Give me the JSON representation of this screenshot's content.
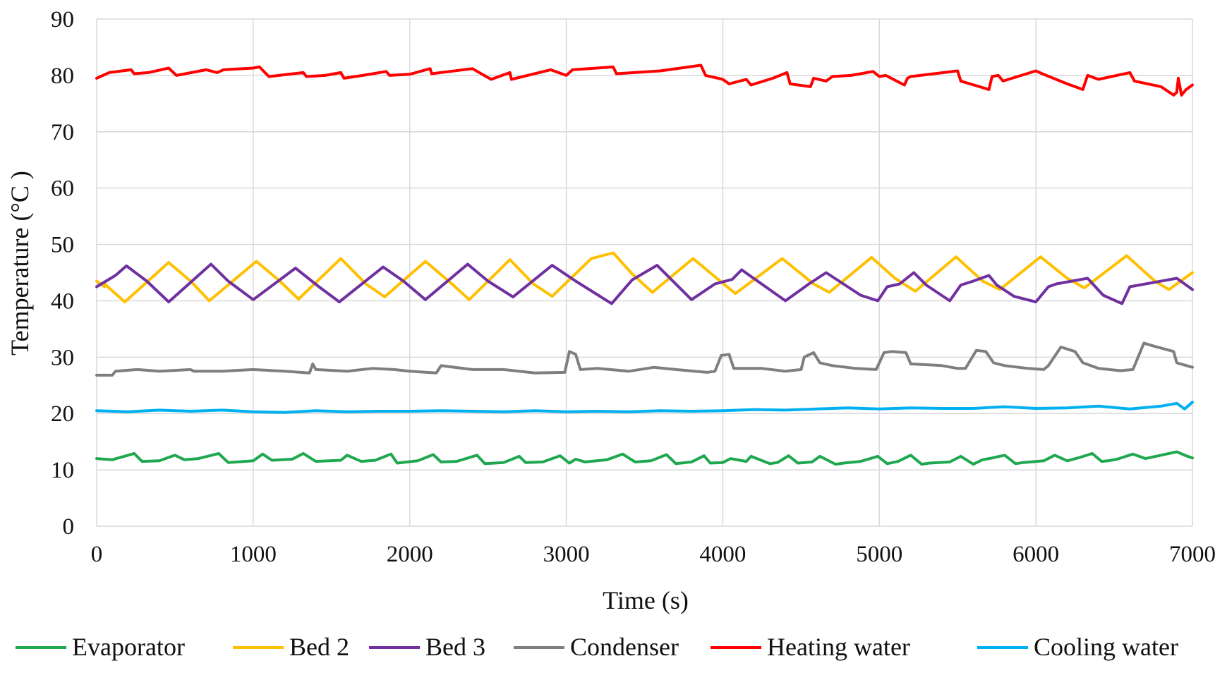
{
  "chart_data": {
    "type": "line",
    "title": "",
    "xlabel": "Time (s)",
    "ylabel": "Temperature (°C )",
    "xlim": [
      0,
      7000
    ],
    "ylim": [
      0,
      90
    ],
    "xticks": [
      0,
      1000,
      2000,
      3000,
      4000,
      5000,
      6000,
      7000
    ],
    "yticks": [
      0,
      10,
      20,
      30,
      40,
      50,
      60,
      70,
      80,
      90
    ],
    "grid": true,
    "legend_position": "bottom",
    "series": [
      {
        "name": "Evaporator",
        "color": "#1fa84f",
        "x": [
          0,
          100,
          240,
          290,
          400,
          500,
          560,
          650,
          780,
          840,
          1000,
          1060,
          1120,
          1250,
          1320,
          1400,
          1560,
          1600,
          1690,
          1780,
          1880,
          1920,
          2050,
          2150,
          2200,
          2300,
          2430,
          2480,
          2600,
          2700,
          2740,
          2850,
          2960,
          3020,
          3060,
          3120,
          3260,
          3360,
          3440,
          3540,
          3640,
          3700,
          3800,
          3880,
          3920,
          4000,
          4050,
          4150,
          4180,
          4300,
          4350,
          4420,
          4480,
          4570,
          4620,
          4720,
          4770,
          4880,
          4990,
          5050,
          5120,
          5200,
          5270,
          5320,
          5450,
          5520,
          5600,
          5660,
          5720,
          5800,
          5870,
          5920,
          6050,
          6120,
          6200,
          6280,
          6360,
          6420,
          6460,
          6520,
          6620,
          6700,
          6800,
          6900,
          6960,
          7000
        ],
        "values": [
          12.0,
          11.8,
          12.9,
          11.5,
          11.6,
          12.6,
          11.8,
          12.0,
          12.9,
          11.3,
          11.6,
          12.8,
          11.7,
          11.9,
          12.9,
          11.5,
          11.7,
          12.6,
          11.5,
          11.7,
          12.8,
          11.2,
          11.6,
          12.7,
          11.4,
          11.5,
          12.6,
          11.1,
          11.3,
          12.4,
          11.3,
          11.4,
          12.5,
          11.2,
          11.9,
          11.4,
          11.8,
          12.8,
          11.4,
          11.6,
          12.7,
          11.1,
          11.4,
          12.5,
          11.2,
          11.3,
          12.0,
          11.5,
          12.4,
          11.1,
          11.3,
          12.5,
          11.2,
          11.4,
          12.4,
          11.0,
          11.2,
          11.5,
          12.4,
          11.1,
          11.5,
          12.6,
          11.0,
          11.2,
          11.4,
          12.4,
          11.0,
          11.8,
          12.1,
          12.6,
          11.1,
          11.3,
          11.6,
          12.6,
          11.6,
          12.2,
          12.9,
          11.5,
          11.6,
          11.9,
          12.8,
          12.0,
          12.6,
          13.2,
          12.5,
          12.1
        ]
      },
      {
        "name": "Bed 2",
        "color": "#ffc000",
        "x": [
          0,
          50,
          50,
          180,
          460,
          600,
          720,
          1020,
          1170,
          1290,
          1560,
          1720,
          1840,
          2100,
          2270,
          2380,
          2640,
          2790,
          2910,
          3160,
          3300,
          3420,
          3550,
          3810,
          3940,
          4080,
          4380,
          4580,
          4680,
          4950,
          5100,
          5230,
          5490,
          5660,
          5770,
          6030,
          6200,
          6310,
          6580,
          6760,
          6850,
          7000
        ],
        "values": [
          43.5,
          42.5,
          43.0,
          39.8,
          46.8,
          43.5,
          40.0,
          47.0,
          43.5,
          40.3,
          47.5,
          43.0,
          40.7,
          47.0,
          43.0,
          40.2,
          47.3,
          43.0,
          40.8,
          47.5,
          48.5,
          44.8,
          41.5,
          47.5,
          44.5,
          41.3,
          47.5,
          43.0,
          41.5,
          47.7,
          44.0,
          41.7,
          47.8,
          43.5,
          42.0,
          47.8,
          44.0,
          42.3,
          48.0,
          43.5,
          42.0,
          45.0
        ]
      },
      {
        "name": "Bed 3",
        "color": "#7030a0",
        "x": [
          0,
          120,
          190,
          320,
          460,
          730,
          840,
          1000,
          1270,
          1420,
          1550,
          1830,
          1960,
          2100,
          2370,
          2500,
          2660,
          2910,
          3060,
          3290,
          3420,
          3580,
          3800,
          3950,
          4060,
          4120,
          4400,
          4550,
          4660,
          4880,
          4990,
          5050,
          5130,
          5220,
          5300,
          5450,
          5520,
          5600,
          5700,
          5750,
          5860,
          6000,
          6080,
          6130,
          6330,
          6430,
          6550,
          6600,
          6900,
          7000
        ],
        "values": [
          42.5,
          44.5,
          46.2,
          43.5,
          39.8,
          46.5,
          43.5,
          40.2,
          45.8,
          42.5,
          39.8,
          46.0,
          43.5,
          40.2,
          46.5,
          43.5,
          40.7,
          46.3,
          43.5,
          39.5,
          43.7,
          46.3,
          40.2,
          43.0,
          43.8,
          45.5,
          40.0,
          43.0,
          45.0,
          41.0,
          40.0,
          42.5,
          43.0,
          45.0,
          42.8,
          40.0,
          42.8,
          43.5,
          44.5,
          42.8,
          40.8,
          39.8,
          42.5,
          43.0,
          44.0,
          41.0,
          39.5,
          42.5,
          44.0,
          42.0
        ]
      },
      {
        "name": "Condenser",
        "color": "#7f7f7f",
        "x": [
          0,
          100,
          120,
          260,
          400,
          600,
          620,
          800,
          1000,
          1200,
          1360,
          1380,
          1400,
          1600,
          1760,
          1900,
          2000,
          2170,
          2200,
          2400,
          2600,
          2800,
          2990,
          3020,
          3060,
          3090,
          3200,
          3400,
          3560,
          3700,
          3900,
          3950,
          3990,
          4040,
          4070,
          4250,
          4400,
          4500,
          4520,
          4580,
          4620,
          4700,
          4850,
          4980,
          5030,
          5080,
          5170,
          5200,
          5400,
          5500,
          5550,
          5620,
          5680,
          5730,
          5800,
          5950,
          6050,
          6080,
          6160,
          6250,
          6300,
          6400,
          6540,
          6620,
          6690,
          6750,
          6880,
          6900,
          7000
        ],
        "values": [
          26.8,
          26.8,
          27.5,
          27.8,
          27.5,
          27.8,
          27.5,
          27.5,
          27.8,
          27.5,
          27.2,
          28.8,
          27.8,
          27.5,
          28.0,
          27.8,
          27.5,
          27.2,
          28.5,
          27.8,
          27.8,
          27.2,
          27.3,
          31.0,
          30.5,
          27.8,
          28.0,
          27.5,
          28.2,
          27.8,
          27.3,
          27.5,
          30.3,
          30.5,
          28.0,
          28.0,
          27.5,
          27.8,
          30.0,
          30.8,
          29.0,
          28.5,
          28.0,
          27.8,
          30.8,
          31.0,
          30.8,
          28.8,
          28.5,
          28.0,
          28.0,
          31.2,
          31.0,
          29.0,
          28.5,
          28.0,
          27.8,
          28.5,
          31.8,
          31.0,
          29.0,
          28.0,
          27.6,
          27.8,
          32.5,
          32.0,
          31.0,
          29.0,
          28.2
        ]
      },
      {
        "name": "Heating water",
        "color": "#ff0000",
        "x": [
          0,
          80,
          220,
          240,
          330,
          460,
          510,
          700,
          770,
          810,
          1000,
          1040,
          1100,
          1320,
          1340,
          1460,
          1560,
          1580,
          1700,
          1850,
          1870,
          2000,
          2130,
          2140,
          2400,
          2520,
          2640,
          2650,
          2900,
          3000,
          3040,
          3300,
          3320,
          3600,
          3860,
          3890,
          4000,
          4040,
          4150,
          4180,
          4320,
          4410,
          4430,
          4560,
          4580,
          4660,
          4700,
          4820,
          4960,
          5000,
          5040,
          5160,
          5180,
          5200,
          5500,
          5520,
          5700,
          5720,
          5760,
          5790,
          6000,
          6040,
          6200,
          6300,
          6330,
          6400,
          6600,
          6630,
          6800,
          6880,
          6900,
          6910,
          6930,
          6960,
          7000
        ],
        "values": [
          79.5,
          80.5,
          81.0,
          80.3,
          80.5,
          81.3,
          80.0,
          81.0,
          80.5,
          81.0,
          81.3,
          81.5,
          79.8,
          80.5,
          79.8,
          80.0,
          80.5,
          79.5,
          80.0,
          80.7,
          80.0,
          80.2,
          81.2,
          80.3,
          81.2,
          79.3,
          80.5,
          79.3,
          81.0,
          80.0,
          81.0,
          81.5,
          80.3,
          80.8,
          81.8,
          80.0,
          79.3,
          78.5,
          79.3,
          78.3,
          79.5,
          80.5,
          78.5,
          78.0,
          79.5,
          79.0,
          79.8,
          80.0,
          80.7,
          79.8,
          80.0,
          78.3,
          79.5,
          79.8,
          80.8,
          79.0,
          77.5,
          79.8,
          80.0,
          79.0,
          80.8,
          80.3,
          78.5,
          77.5,
          80.0,
          79.3,
          80.5,
          79.0,
          78.0,
          76.5,
          77.0,
          79.5,
          76.5,
          77.5,
          78.3
        ]
      },
      {
        "name": "Cooling water",
        "color": "#00b0f0",
        "x": [
          0,
          200,
          400,
          600,
          800,
          1000,
          1200,
          1400,
          1600,
          1800,
          2000,
          2200,
          2400,
          2600,
          2800,
          3000,
          3200,
          3400,
          3600,
          3800,
          4000,
          4200,
          4400,
          4600,
          4800,
          5000,
          5200,
          5400,
          5600,
          5800,
          6000,
          6200,
          6400,
          6600,
          6800,
          6900,
          6950,
          7000
        ],
        "values": [
          20.5,
          20.3,
          20.6,
          20.4,
          20.6,
          20.3,
          20.2,
          20.5,
          20.3,
          20.4,
          20.4,
          20.5,
          20.4,
          20.3,
          20.5,
          20.3,
          20.4,
          20.3,
          20.5,
          20.4,
          20.5,
          20.7,
          20.6,
          20.8,
          21.0,
          20.8,
          21.0,
          20.9,
          20.9,
          21.2,
          20.9,
          21.0,
          21.3,
          20.8,
          21.3,
          21.8,
          20.8,
          22.0
        ]
      }
    ]
  }
}
